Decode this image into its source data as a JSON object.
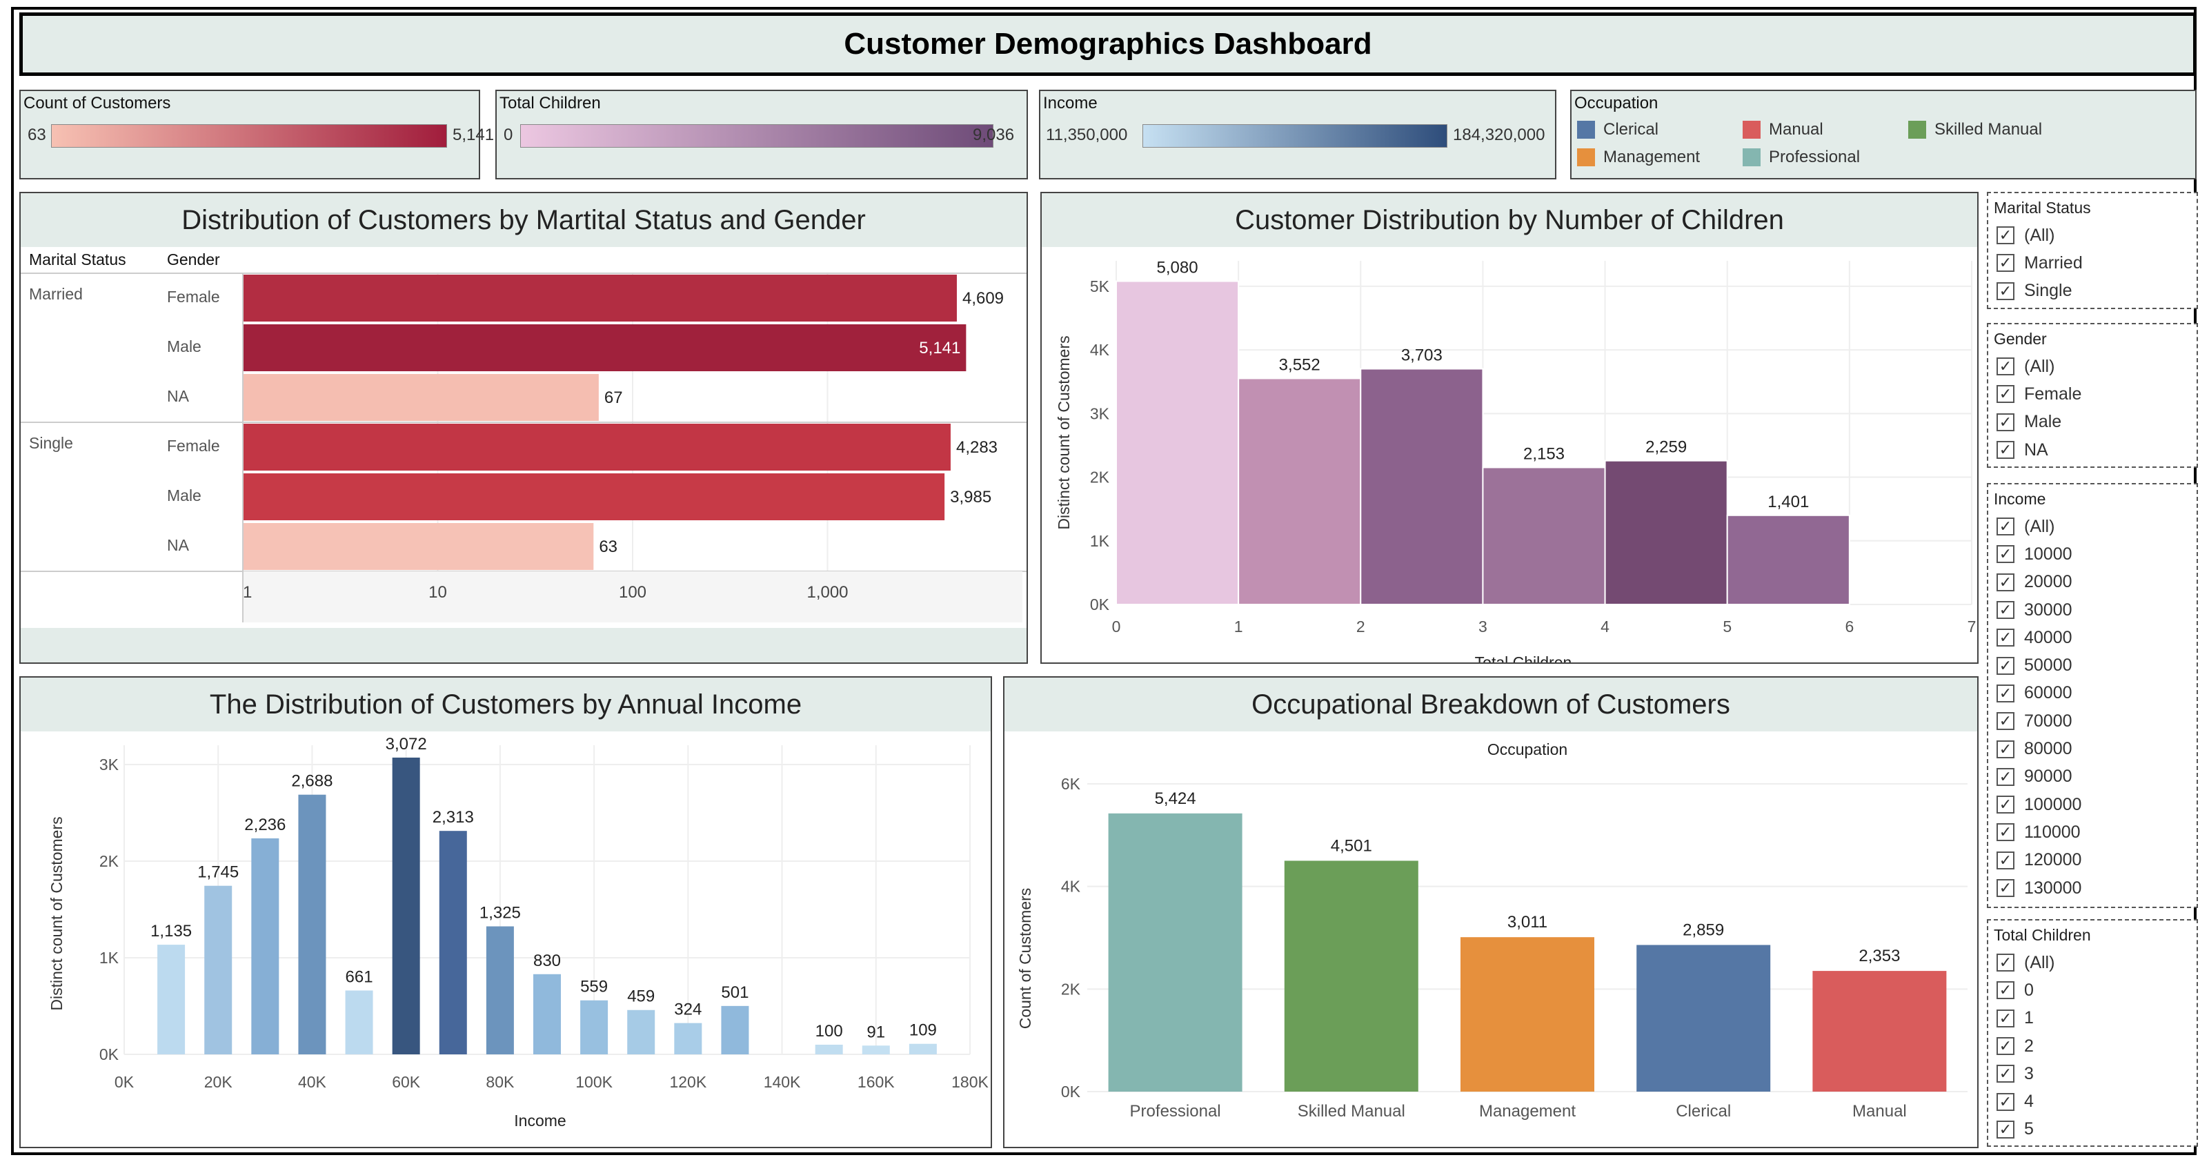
{
  "dashboard": {
    "title": "Customer Demographics Dashboard"
  },
  "legends": {
    "count": {
      "title": "Count of Customers",
      "min": "63",
      "max": "5,141",
      "color_from": "#f7c1b3",
      "color_to": "#a11d3c"
    },
    "children": {
      "title": "Total Children",
      "min": "0",
      "max": "9,036",
      "color_from": "#ecc7e1",
      "color_to": "#6e4b78"
    },
    "income": {
      "title": "Income",
      "min": "11,350,000",
      "max": "184,320,000",
      "color_from": "#c6e0f2",
      "color_to": "#2e4d7b"
    },
    "occupation": {
      "title": "Occupation",
      "items": [
        {
          "label": "Clerical",
          "color": "#5577a5"
        },
        {
          "label": "Manual",
          "color": "#d95c5c"
        },
        {
          "label": "Skilled Manual",
          "color": "#6b9e58"
        },
        {
          "label": "Management",
          "color": "#e6903d"
        },
        {
          "label": "Professional",
          "color": "#84b6b0"
        }
      ]
    }
  },
  "marital_chart": {
    "header": "Distribution of Customers by Martital Status and Gender",
    "col_marital": "Marital Status",
    "col_gender": "Gender",
    "axis_ticks": [
      "1",
      "10",
      "100",
      "1,000"
    ]
  },
  "children_chart": {
    "header": "Customer Distribution by Number of Children",
    "xlabel": "Total Children",
    "ylabel": "Distinct count of Customers",
    "y_ticks": [
      "0K",
      "1K",
      "2K",
      "3K",
      "4K",
      "5K"
    ],
    "x_ticks": [
      "0",
      "1",
      "2",
      "3",
      "4",
      "5",
      "6",
      "7"
    ]
  },
  "income_chart": {
    "header": "The Distribution of Customers by Annual Income",
    "xlabel": "Income",
    "ylabel": "Distinct count of Customers",
    "y_ticks": [
      "0K",
      "1K",
      "2K",
      "3K"
    ],
    "x_ticks": [
      "0K",
      "20K",
      "40K",
      "60K",
      "80K",
      "100K",
      "120K",
      "140K",
      "160K",
      "180K"
    ]
  },
  "occupation_chart": {
    "header": "Occupational Breakdown of Customers",
    "column_header": "Occupation",
    "ylabel": "Count of Customers",
    "y_ticks": [
      "0K",
      "2K",
      "4K",
      "6K"
    ]
  },
  "chart_data": [
    {
      "type": "bar",
      "orientation": "horizontal",
      "x_scale": "log",
      "xlim": [
        1,
        10000
      ],
      "groups": [
        {
          "label": "Married",
          "rows": [
            {
              "gender": "Female",
              "value": 4609,
              "label": "4,609",
              "color": "#b22d42"
            },
            {
              "gender": "Male",
              "value": 5141,
              "label": "5,141",
              "color": "#a0213c"
            },
            {
              "gender": "NA",
              "value": 67,
              "label": "67",
              "color": "#f5beb1"
            }
          ]
        },
        {
          "label": "Single",
          "rows": [
            {
              "gender": "Female",
              "value": 4283,
              "label": "4,283",
              "color": "#c23645"
            },
            {
              "gender": "Male",
              "value": 3985,
              "label": "3,985",
              "color": "#c73a47"
            },
            {
              "gender": "NA",
              "value": 63,
              "label": "63",
              "color": "#f6c2b6"
            }
          ]
        }
      ]
    },
    {
      "type": "bar",
      "x": [
        0,
        1,
        2,
        3,
        4,
        5
      ],
      "values": [
        5080,
        3552,
        3703,
        2153,
        2259,
        1401
      ],
      "labels": [
        "5,080",
        "3,552",
        "3,703",
        "2,153",
        "2,259",
        "1,401"
      ],
      "colors": [
        "#e7c6e0",
        "#c190b2",
        "#8c628d",
        "#9c7299",
        "#744a72",
        "#916893"
      ],
      "xlim": [
        0,
        7
      ],
      "ylim": [
        0,
        5400
      ]
    },
    {
      "type": "bar",
      "x": [
        10000,
        20000,
        30000,
        40000,
        50000,
        60000,
        70000,
        80000,
        90000,
        100000,
        110000,
        120000,
        130000,
        150000,
        160000,
        170000
      ],
      "values": [
        1135,
        1745,
        2236,
        2688,
        661,
        3072,
        2313,
        1325,
        830,
        559,
        459,
        324,
        501,
        100,
        91,
        109
      ],
      "labels": [
        "1,135",
        "1,745",
        "2,236",
        "2,688",
        "661",
        "3,072",
        "2,313",
        "1,325",
        "830",
        "559",
        "459",
        "324",
        "501",
        "100",
        "91",
        "109"
      ],
      "colors": [
        "#bcdaef",
        "#a0c3e1",
        "#86afd5",
        "#6c94bd",
        "#bcdaef",
        "#38567f",
        "#47679a",
        "#6c94bd",
        "#90b9dc",
        "#98c0e0",
        "#a6cbe6",
        "#a9cde8",
        "#90b9dc",
        "#c0ddf0",
        "#c4e0f2",
        "#c0ddf0"
      ],
      "xlim": [
        0,
        180000
      ],
      "ylim": [
        0,
        3200
      ]
    },
    {
      "type": "bar",
      "categories": [
        "Professional",
        "Skilled Manual",
        "Management",
        "Clerical",
        "Manual"
      ],
      "values": [
        5424,
        4501,
        3011,
        2859,
        2353
      ],
      "labels": [
        "5,424",
        "4,501",
        "3,011",
        "2,859",
        "2,353"
      ],
      "colors": [
        "#84b6b0",
        "#6b9e58",
        "#e6903d",
        "#5577a5",
        "#d95c5c"
      ],
      "ylim": [
        0,
        6000
      ]
    }
  ],
  "filters": [
    {
      "title": "Marital Status",
      "items": [
        "(All)",
        "Married",
        "Single"
      ]
    },
    {
      "title": "Gender",
      "items": [
        "(All)",
        "Female",
        "Male",
        "NA"
      ]
    },
    {
      "title": "Income",
      "items": [
        "(All)",
        "10000",
        "20000",
        "30000",
        "40000",
        "50000",
        "60000",
        "70000",
        "80000",
        "90000",
        "100000",
        "110000",
        "120000",
        "130000"
      ]
    },
    {
      "title": "Total Children",
      "items": [
        "(All)",
        "0",
        "1",
        "2",
        "3",
        "4",
        "5"
      ]
    }
  ]
}
